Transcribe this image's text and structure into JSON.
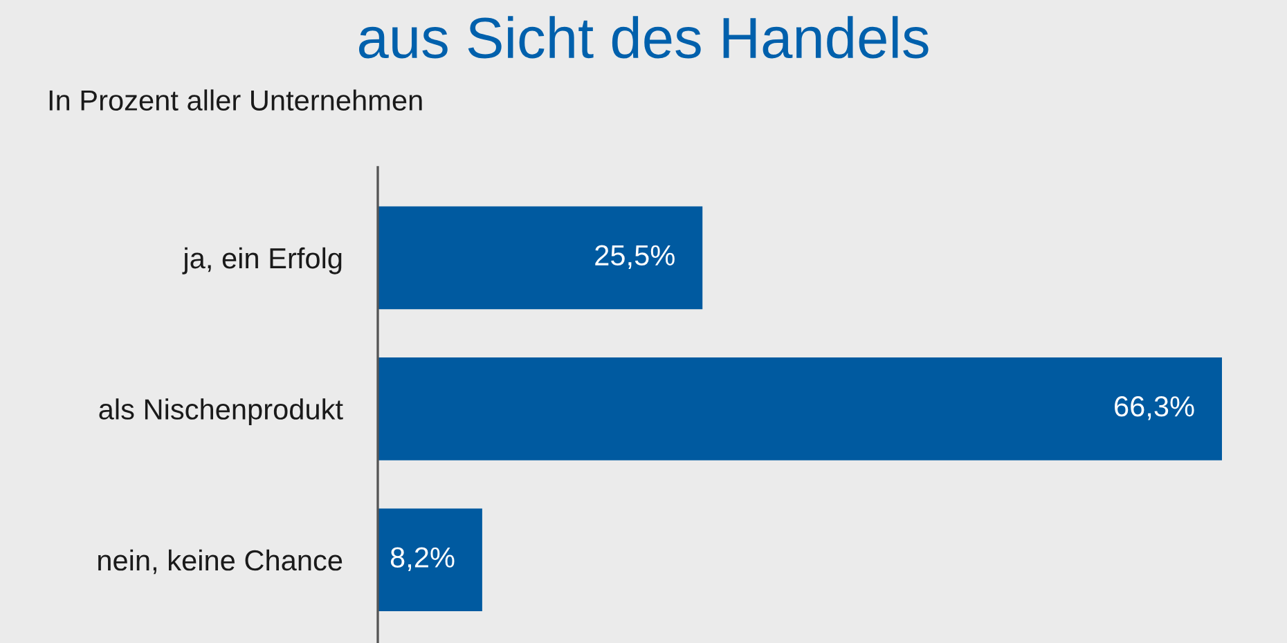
{
  "chart_data": {
    "type": "bar",
    "orientation": "horizontal",
    "title": "aus Sicht des Handels",
    "subtitle": "In Prozent aller Unternehmen",
    "categories": [
      "ja, ein Erfolg",
      "als Nischenprodukt",
      "nein, keine Chance"
    ],
    "values": [
      25.5,
      66.3,
      8.2
    ],
    "value_labels": [
      "25,5%",
      "66,3%",
      "8,2%"
    ],
    "color": "#005aa0",
    "grid": false,
    "legend": false
  }
}
